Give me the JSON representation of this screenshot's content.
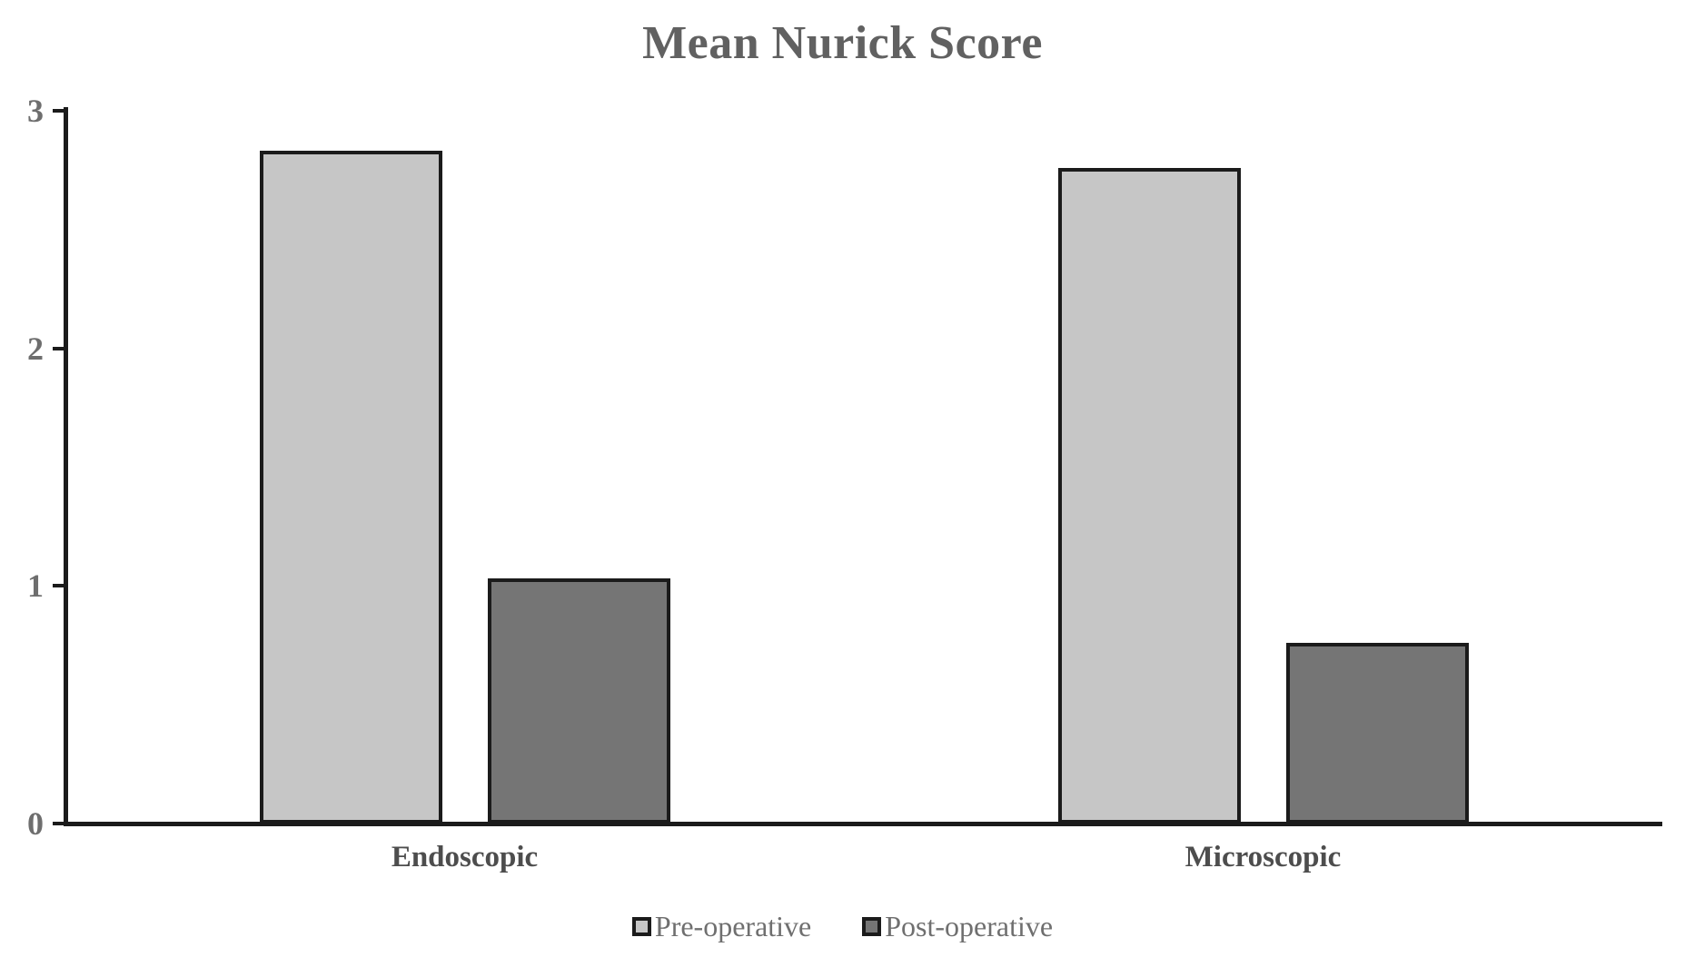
{
  "chart_data": {
    "type": "bar",
    "title": "Mean Nurick Score",
    "xlabel": "",
    "ylabel": "",
    "categories": [
      "Endoscopic",
      "Microscopic"
    ],
    "series": [
      {
        "name": "Pre-operative",
        "color": "#c6c6c6",
        "values": [
          2.83,
          2.76
        ]
      },
      {
        "name": "Post-operative",
        "color": "#757575",
        "values": [
          1.03,
          0.76
        ]
      }
    ],
    "ylim": [
      0,
      3
    ],
    "yticks": [
      0,
      1,
      2,
      3
    ],
    "grid": false,
    "legend_position": "bottom",
    "bar_border_color": "#1b1b1b",
    "axis_color": "#1b1b1b",
    "title_color": "#616161",
    "tick_label_color": "#6e6e6e",
    "category_label_color": "#4d4d4d",
    "legend_text_color": "#6f6f6f"
  }
}
